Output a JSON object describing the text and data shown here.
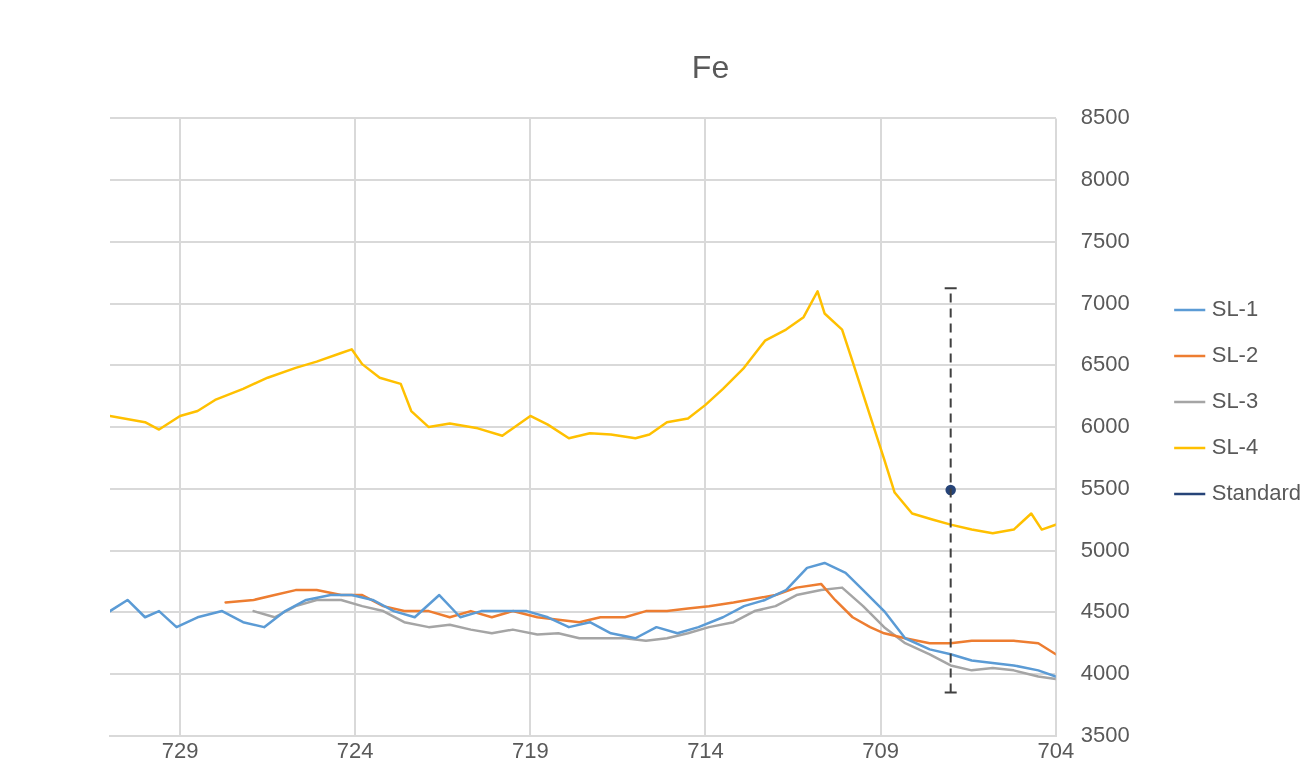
{
  "chart_data": {
    "type": "line",
    "title": "Fe",
    "xlim": [
      731,
      704
    ],
    "xticks": [
      729,
      724,
      719,
      714,
      709,
      704
    ],
    "ylim": [
      3500,
      8500
    ],
    "yticks": [
      3500,
      4000,
      4500,
      5000,
      5500,
      6000,
      6500,
      7000,
      7500,
      8000,
      8500
    ],
    "grid": true,
    "legend": "right",
    "marker": "none",
    "line_style": "solid",
    "series": [
      {
        "name": "SL-1",
        "color": "#5b9bd5",
        "x": [
          731.0,
          730.5,
          730.0,
          729.6,
          729.1,
          728.5,
          727.8,
          727.2,
          726.6,
          726.0,
          725.4,
          724.7,
          724.1,
          723.5,
          722.9,
          722.3,
          721.6,
          721.0,
          720.4,
          719.8,
          719.1,
          718.5,
          717.9,
          717.3,
          716.7,
          716.0,
          715.4,
          714.8,
          714.2,
          713.5,
          712.9,
          712.3,
          711.7,
          711.1,
          710.6,
          710.0,
          709.5,
          708.9,
          708.3,
          707.6,
          707.0,
          706.4,
          705.8,
          705.2,
          704.5,
          704.0
        ],
        "values": [
          4510,
          4600,
          4460,
          4510,
          4380,
          4460,
          4510,
          4420,
          4380,
          4510,
          4600,
          4640,
          4640,
          4600,
          4510,
          4460,
          4640,
          4460,
          4510,
          4510,
          4510,
          4460,
          4380,
          4420,
          4330,
          4290,
          4380,
          4330,
          4380,
          4460,
          4550,
          4600,
          4680,
          4860,
          4900,
          4820,
          4680,
          4510,
          4290,
          4200,
          4160,
          4110,
          4090,
          4070,
          4030,
          3980
        ]
      },
      {
        "name": "SL-2",
        "color": "#ed7d31",
        "x": [
          727.7,
          726.9,
          726.3,
          725.7,
          725.1,
          724.4,
          723.8,
          723.2,
          722.6,
          721.9,
          721.3,
          720.7,
          720.1,
          719.5,
          718.8,
          718.2,
          717.6,
          717.0,
          716.3,
          715.7,
          715.1,
          714.5,
          713.9,
          713.2,
          712.6,
          712.0,
          711.4,
          710.7,
          710.3,
          709.8,
          709.3,
          708.9,
          708.3,
          707.6,
          707.0,
          706.4,
          705.8,
          705.2,
          704.5,
          704.0
        ],
        "values": [
          4580,
          4600,
          4640,
          4680,
          4680,
          4640,
          4640,
          4550,
          4510,
          4510,
          4460,
          4510,
          4460,
          4510,
          4460,
          4440,
          4420,
          4460,
          4460,
          4510,
          4510,
          4530,
          4550,
          4580,
          4610,
          4640,
          4700,
          4730,
          4600,
          4460,
          4380,
          4330,
          4290,
          4250,
          4250,
          4270,
          4270,
          4270,
          4250,
          4160
        ]
      },
      {
        "name": "SL-3",
        "color": "#a5a5a5",
        "x": [
          726.9,
          726.3,
          725.7,
          725.1,
          724.4,
          723.8,
          723.2,
          722.6,
          721.9,
          721.3,
          720.7,
          720.1,
          719.5,
          718.8,
          718.2,
          717.6,
          717.0,
          716.3,
          715.7,
          715.1,
          714.5,
          713.9,
          713.2,
          712.6,
          712.0,
          711.4,
          710.7,
          710.1,
          709.5,
          708.9,
          708.3,
          707.6,
          707.0,
          706.4,
          705.8,
          705.2,
          704.5,
          704.0
        ],
        "values": [
          4510,
          4460,
          4550,
          4600,
          4600,
          4550,
          4510,
          4420,
          4380,
          4400,
          4360,
          4330,
          4360,
          4320,
          4330,
          4290,
          4290,
          4290,
          4270,
          4290,
          4330,
          4380,
          4420,
          4510,
          4550,
          4640,
          4680,
          4700,
          4550,
          4380,
          4250,
          4160,
          4070,
          4030,
          4050,
          4030,
          3980,
          3960
        ]
      },
      {
        "name": "SL-4",
        "color": "#ffc000",
        "x": [
          731.0,
          730.0,
          729.6,
          729.0,
          728.5,
          728.0,
          727.2,
          726.5,
          725.7,
          725.1,
          724.4,
          724.1,
          723.8,
          723.3,
          722.7,
          722.4,
          721.9,
          721.3,
          720.5,
          719.8,
          719.0,
          718.5,
          717.9,
          717.3,
          716.7,
          716.0,
          715.6,
          715.1,
          714.5,
          714.0,
          713.5,
          712.9,
          712.3,
          711.7,
          711.2,
          710.8,
          710.6,
          710.1,
          709.8,
          709.3,
          708.9,
          708.6,
          708.1,
          707.5,
          707.0,
          706.4,
          705.8,
          705.2,
          704.7,
          704.4,
          704.0
        ],
        "values": [
          6090,
          6040,
          5980,
          6090,
          6130,
          6220,
          6310,
          6400,
          6480,
          6530,
          6600,
          6630,
          6510,
          6400,
          6350,
          6130,
          6000,
          6030,
          5990,
          5930,
          6090,
          6020,
          5910,
          5950,
          5940,
          5910,
          5940,
          6040,
          6070,
          6180,
          6310,
          6480,
          6700,
          6790,
          6890,
          7100,
          6920,
          6790,
          6530,
          6090,
          5740,
          5470,
          5300,
          5250,
          5210,
          5170,
          5140,
          5170,
          5300,
          5170,
          5210
        ]
      },
      {
        "name": "Standard",
        "color": "#264478",
        "x": [
          707.0
        ],
        "values": [
          5490
        ],
        "marker": "circle",
        "errors": [
          [
            3850,
            7125
          ]
        ]
      }
    ]
  }
}
